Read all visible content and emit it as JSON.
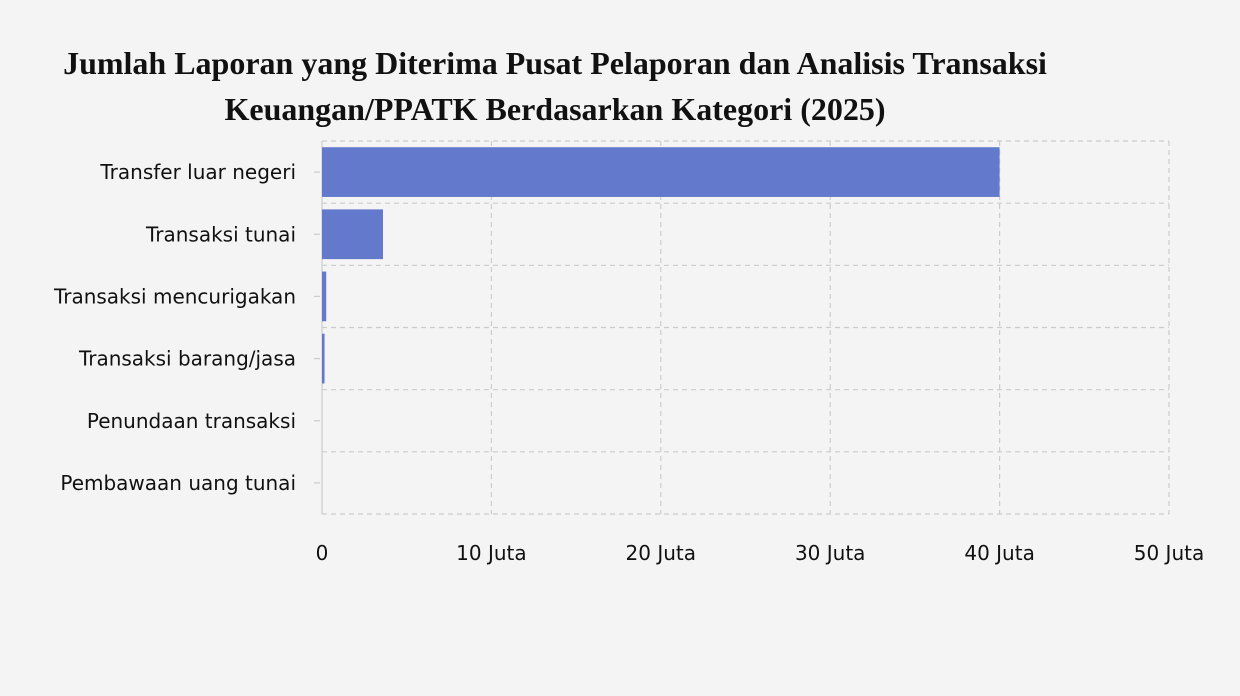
{
  "chart_data": {
    "type": "bar",
    "orientation": "horizontal",
    "title_lines": [
      "Jumlah Laporan yang Diterima Pusat Pelaporan dan Analisis Transaksi",
      "Keuangan/PPATK Berdasarkan Kategori (2025)"
    ],
    "categories": [
      "Transfer luar negeri",
      "Transaksi tunai",
      "Transaksi mencurigakan",
      "Transaksi barang/jasa",
      "Penundaan transaksi",
      "Pembawaan uang tunai"
    ],
    "values": [
      40000000,
      3600000,
      250000,
      150000,
      0,
      0
    ],
    "xlim": [
      0,
      50000000
    ],
    "x_ticks": [
      0,
      10000000,
      20000000,
      30000000,
      40000000,
      50000000
    ],
    "x_tick_labels": [
      "0",
      "10 Juta",
      "20 Juta",
      "30 Juta",
      "40 Juta",
      "50 Juta"
    ],
    "grid": true,
    "grid_style": "dashed",
    "legend": false,
    "bar_color": "#6279cc"
  }
}
